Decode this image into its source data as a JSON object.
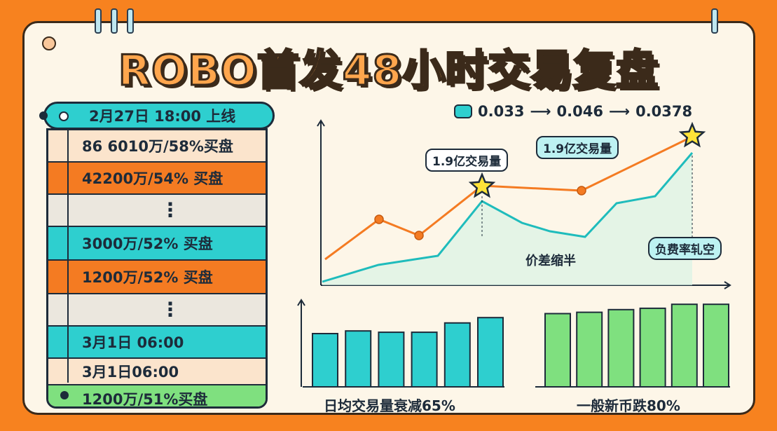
{
  "title": "ROBO首发48小时交易复盘",
  "timeline": {
    "header": "2月27日 18:00 上线",
    "rows": [
      {
        "text": "86 6010万/58%买盘",
        "color": "#fbe4cc"
      },
      {
        "text": "42200万/54% 买盘",
        "color": "#f47b22"
      },
      {
        "text": "⋮",
        "color": "#ebe7de"
      },
      {
        "text": "3000万/52% 买盘",
        "color": "#2ecfcf"
      },
      {
        "text": "1200万/52% 买盘",
        "color": "#f47b22"
      },
      {
        "text": "⋮",
        "color": "#ebe7de"
      },
      {
        "text": "3月1日 06:00",
        "color": "#2ecfcf"
      },
      {
        "text": "3月1日06:00",
        "color": "#fbe4cc"
      },
      {
        "text": "1200万/51%买盘",
        "color": "#7fe07f"
      }
    ]
  },
  "price_legend": {
    "p1": "0.033",
    "p2": "0.046",
    "p3": "0.0378",
    "arrow": "⟶"
  },
  "callouts": {
    "vol1": "1.9亿交易量",
    "vol2": "1.9亿交易量",
    "spread": "价差缩半",
    "funding": "负费率轧空"
  },
  "chart_data": [
    {
      "type": "line",
      "series": [
        {
          "color": "#f47b22",
          "values": [
            0.2,
            0.5,
            0.4,
            0.72,
            0.7,
            0.68,
            1.0
          ]
        },
        {
          "color": "#1fbcbc",
          "values": [
            0.0,
            0.1,
            0.15,
            0.62,
            0.4,
            0.45,
            0.95
          ]
        }
      ],
      "colors": {
        "orange": "#f47b22",
        "teal": "#1fbcbc"
      }
    },
    {
      "type": "bar",
      "caption": "日均交易量衰减65%",
      "values": [
        40,
        42,
        41,
        41,
        48,
        52
      ],
      "color": "#2ecfcf"
    },
    {
      "type": "bar",
      "caption": "一般新币跌80%",
      "values": [
        55,
        56,
        58,
        59,
        62,
        62
      ],
      "color": "#7fe07f"
    }
  ]
}
